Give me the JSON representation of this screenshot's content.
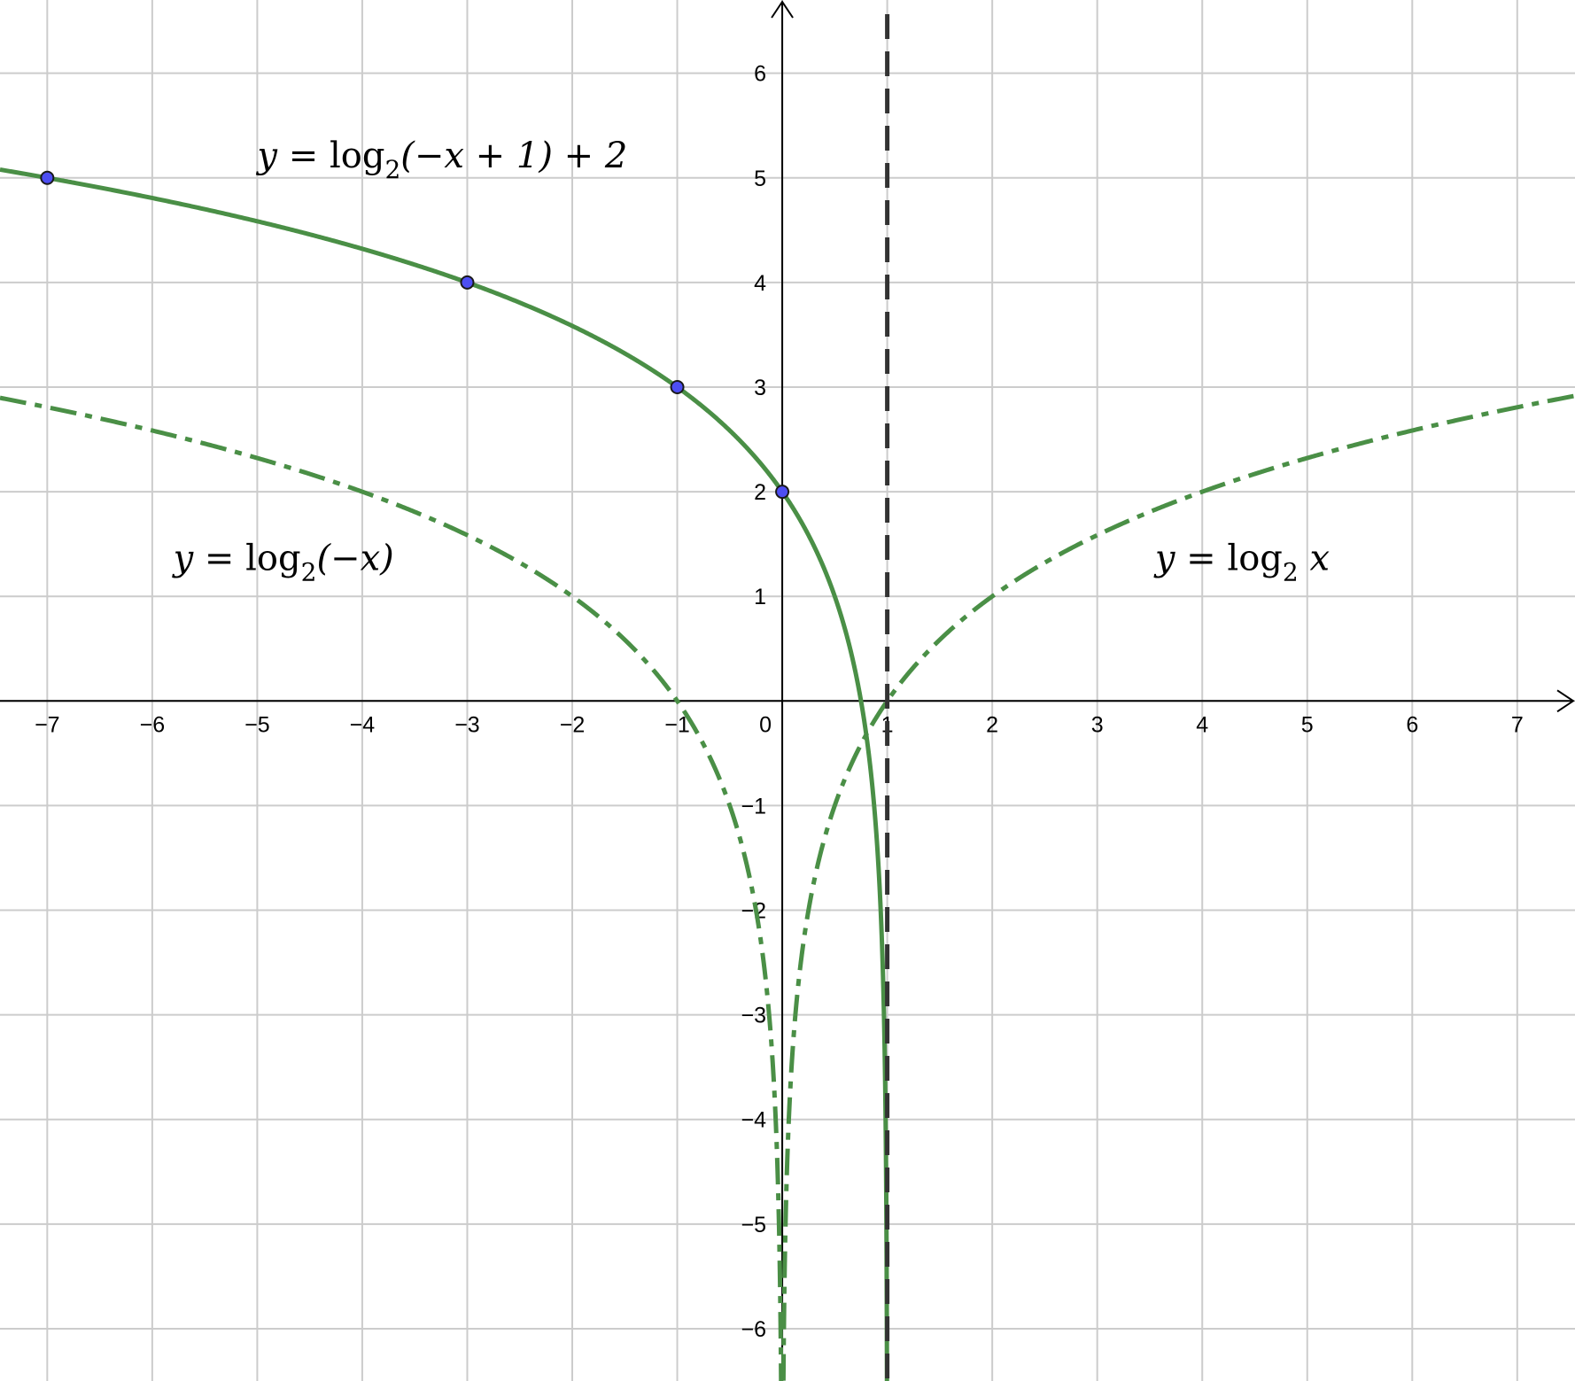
{
  "chart_data": {
    "type": "line",
    "title": "",
    "xlabel": "",
    "ylabel": "",
    "xlim": [
      -7.45,
      7.55
    ],
    "ylim": [
      -6.5,
      6.7
    ],
    "grid": true,
    "x_ticks": [
      -7,
      -6,
      -5,
      -4,
      -3,
      -2,
      -1,
      0,
      1,
      2,
      3,
      4,
      5,
      6,
      7
    ],
    "y_ticks": [
      -6,
      -5,
      -4,
      -3,
      -2,
      -1,
      1,
      2,
      3,
      4,
      5,
      6
    ],
    "x_tick_labels": [
      "−7",
      "−6",
      "−5",
      "−4",
      "−3",
      "−2",
      "−1",
      "0",
      "1",
      "2",
      "3",
      "4",
      "5",
      "6",
      "7"
    ],
    "y_tick_labels": [
      "−6",
      "−5",
      "−4",
      "−3",
      "−2",
      "−1",
      "1",
      "2",
      "3",
      "4",
      "5",
      "6"
    ],
    "series": [
      {
        "function": "log2(-x+1)+2",
        "style": "solid",
        "color": "#4a8f46",
        "domain": [
          -7.45,
          1
        ],
        "label": {
          "y": "y",
          "eq": " = ",
          "fn": "log",
          "sub": "2",
          "arg": "(−x + 1) + 2",
          "at": [
            -5,
            5.1
          ]
        }
      },
      {
        "function": "log2(-x)",
        "style": "dashdot",
        "color": "#4a8f46",
        "domain": [
          -7.45,
          0
        ],
        "label": {
          "y": "y",
          "eq": " = ",
          "fn": "log",
          "sub": "2",
          "arg": "(−x)",
          "at": [
            -5.8,
            1.25
          ]
        }
      },
      {
        "function": "log2(x)",
        "style": "dashdot",
        "color": "#4a8f46",
        "domain": [
          0,
          7.55
        ],
        "label": {
          "y": "y",
          "eq": " = ",
          "fn": "log",
          "sub": "2",
          "arg": " x",
          "at": [
            3.55,
            1.25
          ]
        }
      }
    ],
    "points": [
      {
        "x": -7,
        "y": 5
      },
      {
        "x": -3,
        "y": 4
      },
      {
        "x": -1,
        "y": 3
      },
      {
        "x": 0,
        "y": 2
      }
    ],
    "point_color": "#4d4ef2",
    "asymptote": {
      "x": 1,
      "style": "dashed",
      "color": "#333333"
    }
  }
}
